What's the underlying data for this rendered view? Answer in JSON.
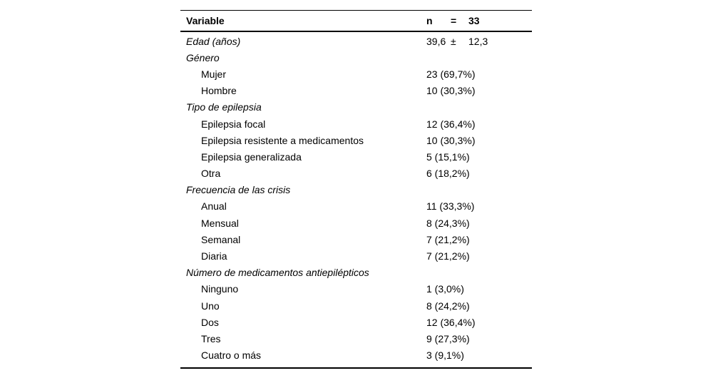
{
  "table": {
    "header": {
      "variable_label": "Variable",
      "n_parts": [
        "n",
        "=",
        "33"
      ]
    },
    "rows": [
      {
        "label": "Edad (años)",
        "type": "category",
        "value_parts": [
          "39,6",
          "±",
          "12,3"
        ]
      },
      {
        "label": "Género",
        "type": "category",
        "value": ""
      },
      {
        "label": "Mujer",
        "type": "item",
        "value": "23 (69,7%)"
      },
      {
        "label": "Hombre",
        "type": "item",
        "value": "10 (30,3%)"
      },
      {
        "label": "Tipo de epilepsia",
        "type": "category",
        "value": ""
      },
      {
        "label": "Epilepsia focal",
        "type": "item",
        "value": "12 (36,4%)"
      },
      {
        "label": "Epilepsia resistente a medicamentos",
        "type": "item",
        "value": "10 (30,3%)"
      },
      {
        "label": "Epilepsia generalizada",
        "type": "item",
        "value": "5 (15,1%)"
      },
      {
        "label": "Otra",
        "type": "item",
        "value": "6 (18,2%)"
      },
      {
        "label": "Frecuencia de las crisis",
        "type": "category",
        "value": ""
      },
      {
        "label": "Anual",
        "type": "item",
        "value": "11 (33,3%)"
      },
      {
        "label": "Mensual",
        "type": "item",
        "value": "8 (24,3%)"
      },
      {
        "label": "Semanal",
        "type": "item",
        "value": "7 (21,2%)"
      },
      {
        "label": "Diaria",
        "type": "item",
        "value": "7 (21,2%)"
      },
      {
        "label": "Número de medicamentos antiepilépticos",
        "type": "category",
        "value": ""
      },
      {
        "label": "Ninguno",
        "type": "item",
        "value": "1 (3,0%)"
      },
      {
        "label": "Uno",
        "type": "item",
        "value": "8 (24,2%)"
      },
      {
        "label": "Dos",
        "type": "item",
        "value": "12 (36,4%)"
      },
      {
        "label": "Tres",
        "type": "item",
        "value": "9 (27,3%)"
      },
      {
        "label": "Cuatro o más",
        "type": "item",
        "value": "3 (9,1%)"
      }
    ]
  }
}
